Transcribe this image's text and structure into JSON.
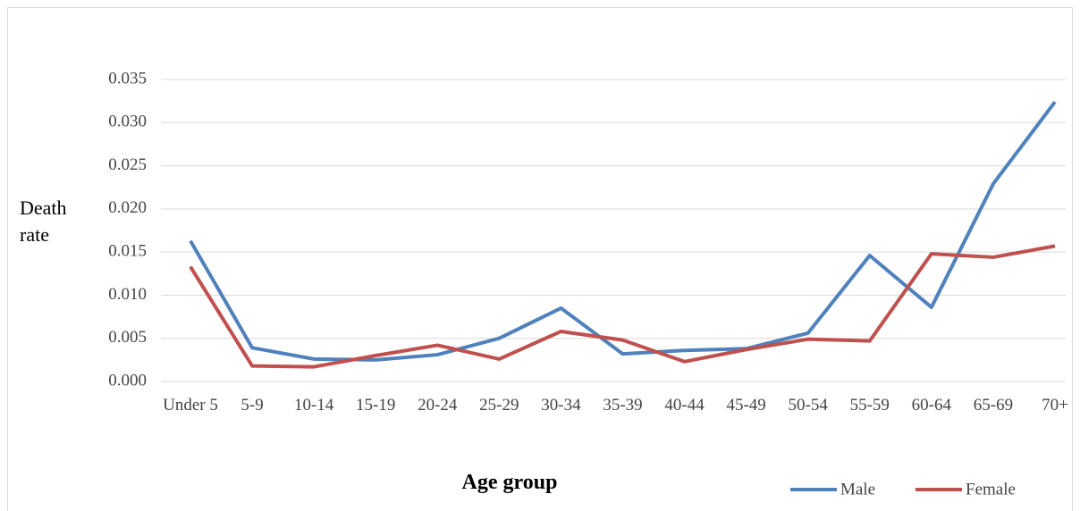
{
  "chart_data": {
    "type": "line",
    "x_label": "Age group",
    "y_label": "Death rate",
    "categories": [
      "Under 5",
      "5-9",
      "10-14",
      "15-19",
      "20-24",
      "25-29",
      "30-34",
      "35-39",
      "40-44",
      "45-49",
      "50-54",
      "55-59",
      "60-64",
      "65-69",
      "70+"
    ],
    "series": [
      {
        "name": "Male",
        "color": "#4f81bd",
        "values": [
          0.0163,
          0.0039,
          0.0026,
          0.0025,
          0.0031,
          0.005,
          0.0085,
          0.0032,
          0.0036,
          0.0038,
          0.0056,
          0.0146,
          0.0086,
          0.0229,
          0.0324
        ]
      },
      {
        "name": "Female",
        "color": "#c0504d",
        "values": [
          0.0133,
          0.0018,
          0.0017,
          0.003,
          0.0042,
          0.0026,
          0.0058,
          0.0048,
          0.0023,
          0.0037,
          0.0049,
          0.0047,
          0.0148,
          0.0144,
          0.0157
        ]
      }
    ],
    "ylim": [
      0,
      0.035
    ],
    "yticks": [
      {
        "value": 0,
        "label": "0.000"
      },
      {
        "value": 0.005,
        "label": "0.005"
      },
      {
        "value": 0.01,
        "label": "0.010"
      },
      {
        "value": 0.015,
        "label": "0.015"
      },
      {
        "value": 0.02,
        "label": "0.020"
      },
      {
        "value": 0.025,
        "label": "0.025"
      },
      {
        "value": 0.03,
        "label": "0.030"
      },
      {
        "value": 0.035,
        "label": "0.035"
      }
    ],
    "grid": true,
    "legend": "bottom-right"
  }
}
